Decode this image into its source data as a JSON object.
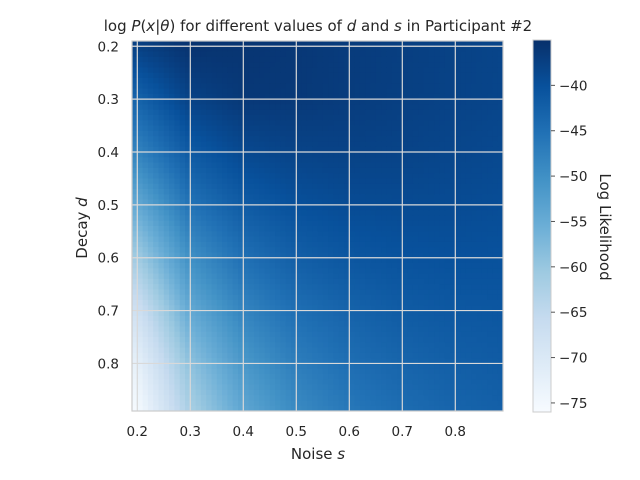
{
  "chart_data": {
    "type": "heatmap",
    "title": "log P(x|θ) for different values of d and s in Participant #2",
    "title_parts": {
      "pre": "log ",
      "P": "P",
      "paren_open": "(",
      "x": "x",
      "bar": "|",
      "theta": "θ",
      "paren_close": ")",
      "middle": " for different values of ",
      "d": "d",
      "and": " and ",
      "s": "s",
      "post": " in Participant #2"
    },
    "xlabel": "Noise s",
    "xlabel_parts": {
      "text": "Noise ",
      "var": "s"
    },
    "ylabel": "Decay d",
    "ylabel_parts": {
      "text": "Decay ",
      "var": "d"
    },
    "colorbar_label": "Log Likelihood",
    "colormap": "Blues",
    "colormap_stops": [
      "#f7fbff",
      "#deebf7",
      "#c6dbef",
      "#9ecae1",
      "#6baed6",
      "#4292c6",
      "#2171b5",
      "#08519c",
      "#08306b"
    ],
    "x_range": [
      0.19,
      0.89
    ],
    "y_range": [
      0.19,
      0.89
    ],
    "y_inverted": true,
    "x_ticks": [
      0.2,
      0.3,
      0.4,
      0.5,
      0.6,
      0.7,
      0.8
    ],
    "x_tick_labels": [
      "0.2",
      "0.3",
      "0.4",
      "0.5",
      "0.6",
      "0.7",
      "0.8"
    ],
    "y_ticks": [
      0.2,
      0.3,
      0.4,
      0.5,
      0.6,
      0.7,
      0.8
    ],
    "y_tick_labels": [
      "0.2",
      "0.3",
      "0.4",
      "0.5",
      "0.6",
      "0.7",
      "0.8"
    ],
    "color_range": [
      -76,
      -35
    ],
    "colorbar_ticks": [
      -40,
      -45,
      -50,
      -55,
      -60,
      -65,
      -70,
      -75
    ],
    "colorbar_tick_labels": [
      "−40",
      "−45",
      "−50",
      "−55",
      "−60",
      "−65",
      "−70",
      "−75"
    ],
    "grid": true,
    "noise_s": [
      0.2,
      0.3,
      0.4,
      0.5,
      0.6,
      0.7,
      0.8,
      0.89
    ],
    "decay_d": [
      0.2,
      0.3,
      0.4,
      0.5,
      0.6,
      0.7,
      0.8,
      0.89
    ],
    "log_likelihood": [
      [
        -37.5,
        -35.5,
        -35.8,
        -36.2,
        -36.8,
        -37.3,
        -37.8,
        -38.2
      ],
      [
        -43.0,
        -37.8,
        -36.3,
        -36.4,
        -36.9,
        -37.4,
        -37.9,
        -38.3
      ],
      [
        -48.0,
        -41.5,
        -38.8,
        -38.0,
        -37.8,
        -38.0,
        -38.4,
        -38.8
      ],
      [
        -54.5,
        -45.5,
        -41.8,
        -40.0,
        -39.3,
        -39.1,
        -39.2,
        -39.5
      ],
      [
        -61.0,
        -50.0,
        -45.0,
        -42.3,
        -41.0,
        -40.4,
        -40.1,
        -40.2
      ],
      [
        -67.5,
        -54.5,
        -48.2,
        -44.8,
        -43.0,
        -41.8,
        -41.2,
        -41.0
      ],
      [
        -72.5,
        -59.0,
        -51.5,
        -47.2,
        -44.8,
        -43.3,
        -42.3,
        -41.8
      ],
      [
        -75.5,
        -62.0,
        -54.0,
        -49.2,
        -46.3,
        -44.5,
        -43.2,
        -42.5
      ]
    ]
  }
}
